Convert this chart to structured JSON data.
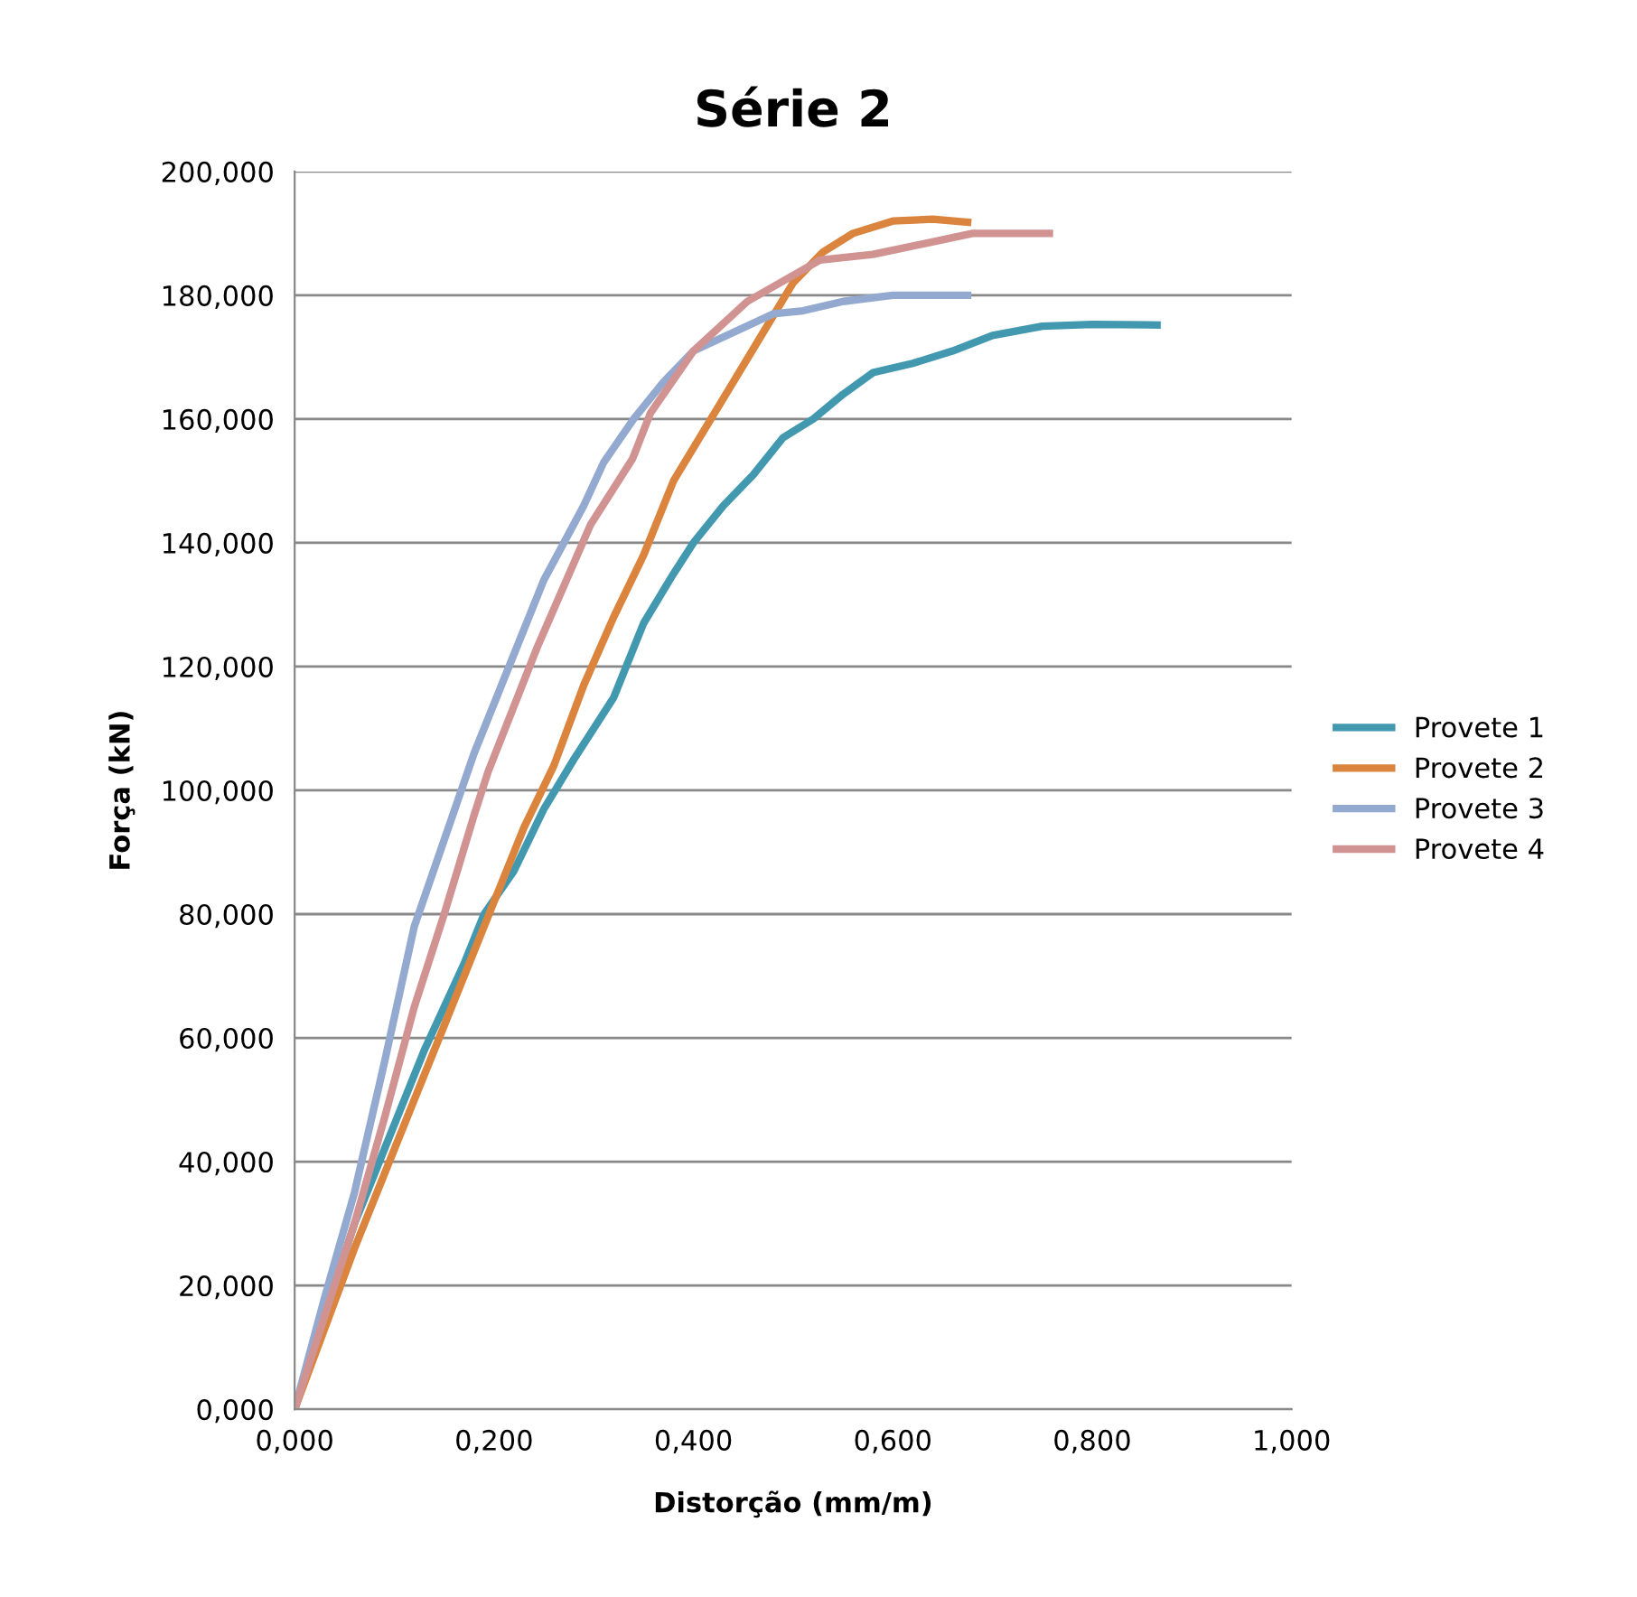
{
  "chart_data": {
    "type": "line",
    "title": "Série 2",
    "xlabel": "Distorção (mm/m)",
    "ylabel": "Força (kN)",
    "xlim": [
      0,
      1
    ],
    "ylim": [
      0,
      200
    ],
    "xticks": [
      {
        "value": 0,
        "label": "0,000"
      },
      {
        "value": 0.2,
        "label": "0,200"
      },
      {
        "value": 0.4,
        "label": "0,400"
      },
      {
        "value": 0.6,
        "label": "0,600"
      },
      {
        "value": 0.8,
        "label": "0,800"
      },
      {
        "value": 1,
        "label": "1,000"
      }
    ],
    "yticks": [
      {
        "value": 0,
        "label": "0,000"
      },
      {
        "value": 20,
        "label": "20,000"
      },
      {
        "value": 40,
        "label": "40,000"
      },
      {
        "value": 60,
        "label": "60,000"
      },
      {
        "value": 80,
        "label": "80,000"
      },
      {
        "value": 100,
        "label": "100,000"
      },
      {
        "value": 120,
        "label": "120,000"
      },
      {
        "value": 140,
        "label": "140,000"
      },
      {
        "value": 160,
        "label": "160,000"
      },
      {
        "value": 180,
        "label": "180,000"
      },
      {
        "value": 200,
        "label": "200,000"
      }
    ],
    "grid": "y",
    "legend": "right",
    "marker": "none",
    "line_style": "solid",
    "series": [
      {
        "name": "Provete 1",
        "color": "#4198af",
        "x": [
          0,
          0.03,
          0.06,
          0.09,
          0.11,
          0.13,
          0.15,
          0.17,
          0.19,
          0.22,
          0.25,
          0.28,
          0.3,
          0.32,
          0.35,
          0.38,
          0.4,
          0.43,
          0.46,
          0.49,
          0.52,
          0.55,
          0.58,
          0.62,
          0.66,
          0.7,
          0.75,
          0.8,
          0.865
        ],
        "values": [
          0,
          15,
          30,
          42,
          50,
          58,
          65,
          72,
          80,
          87,
          97,
          105,
          110,
          115,
          127,
          135,
          140,
          146,
          151,
          157,
          160,
          164,
          167.5,
          169,
          171,
          173.5,
          175,
          175.3,
          175.2
        ]
      },
      {
        "name": "Provete 2",
        "color": "#db843d",
        "x": [
          0,
          0.03,
          0.06,
          0.09,
          0.12,
          0.15,
          0.18,
          0.2,
          0.23,
          0.26,
          0.29,
          0.32,
          0.35,
          0.38,
          0.41,
          0.44,
          0.47,
          0.5,
          0.53,
          0.56,
          0.6,
          0.64,
          0.675
        ],
        "values": [
          0,
          13,
          26,
          38,
          50,
          62,
          74,
          82,
          94,
          104,
          117,
          128,
          138,
          150,
          158,
          166,
          174,
          182,
          187,
          190,
          192,
          192.3,
          191.8
        ]
      },
      {
        "name": "Provete 3",
        "color": "#93a9cf",
        "x": [
          0,
          0.03,
          0.06,
          0.09,
          0.12,
          0.15,
          0.18,
          0.21,
          0.23,
          0.25,
          0.27,
          0.29,
          0.31,
          0.34,
          0.37,
          0.4,
          0.44,
          0.48,
          0.51,
          0.55,
          0.6,
          0.675
        ],
        "values": [
          0,
          18,
          35,
          56,
          78,
          92,
          106,
          118,
          126,
          134,
          140,
          146,
          153,
          160,
          166,
          171,
          174,
          177,
          177.5,
          179,
          180,
          180
        ]
      },
      {
        "name": "Provete 4",
        "color": "#d19392",
        "x": [
          0,
          0.03,
          0.06,
          0.09,
          0.12,
          0.15,
          0.18,
          0.194,
          0.243,
          0.297,
          0.339,
          0.357,
          0.4,
          0.454,
          0.527,
          0.58,
          0.68,
          0.757
        ],
        "values": [
          0,
          15,
          30,
          47,
          65,
          80,
          96,
          103,
          123,
          143,
          153.6,
          161,
          171,
          179,
          185.7,
          186.6,
          190,
          190
        ]
      }
    ]
  }
}
